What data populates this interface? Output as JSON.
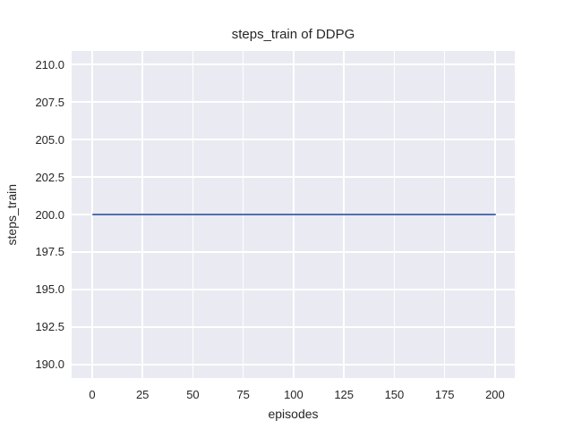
{
  "figure": {
    "title": "steps_train of DDPG",
    "xlabel": "episodes",
    "ylabel": "steps_train"
  },
  "chart_data": {
    "type": "line",
    "title": "steps_train of DDPG",
    "xlabel": "episodes",
    "ylabel": "steps_train",
    "series": [
      {
        "name": "steps_train",
        "color": "#4c72b0",
        "x": [
          0,
          199
        ],
        "y": [
          200,
          200
        ],
        "note": "constant value 200 across all episodes"
      }
    ],
    "xlim": [
      -10.2,
      209.8
    ],
    "ylim": [
      189.1,
      210.9
    ],
    "xticks": [
      0,
      25,
      50,
      75,
      100,
      125,
      150,
      175,
      200
    ],
    "xtick_labels": [
      "0",
      "25",
      "50",
      "75",
      "100",
      "125",
      "150",
      "175",
      "200"
    ],
    "yticks": [
      190.0,
      192.5,
      195.0,
      197.5,
      200.0,
      202.5,
      205.0,
      207.5,
      210.0
    ],
    "ytick_labels": [
      "190.0",
      "192.5",
      "195.0",
      "197.5",
      "200.0",
      "202.5",
      "205.0",
      "207.5",
      "210.0"
    ],
    "grid": true,
    "legend": false,
    "plot_background": "#eaeaf2",
    "grid_color": "#ffffff",
    "text_color": "#262626"
  }
}
